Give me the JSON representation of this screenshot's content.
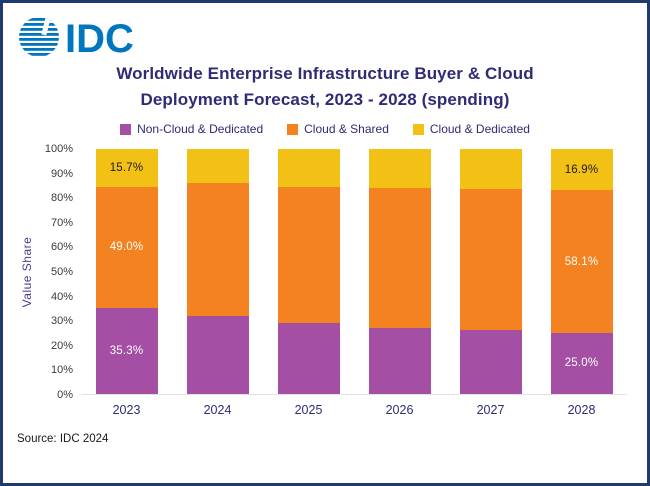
{
  "logo": {
    "text": "IDC",
    "color": "#0076BE"
  },
  "title": {
    "line1": "Worldwide Enterprise Infrastructure Buyer & Cloud",
    "line2": "Deployment Forecast, 2023 - 2028 (spending)"
  },
  "source": "Source: IDC 2024",
  "chart_data": {
    "type": "bar",
    "stacked": true,
    "percent_stacked": true,
    "title": "Worldwide Enterprise Infrastructure Buyer & Cloud Deployment Forecast, 2023 - 2028 (spending)",
    "categories": [
      "2023",
      "2024",
      "2025",
      "2026",
      "2027",
      "2028"
    ],
    "series": [
      {
        "name": "Non-Cloud & Dedicated",
        "color": "#A44FA4",
        "label_color": "#FFFFFF",
        "values": [
          35.3,
          32.0,
          29.0,
          27.0,
          26.0,
          25.0
        ],
        "labels": [
          "35.3%",
          null,
          null,
          null,
          null,
          "25.0%"
        ]
      },
      {
        "name": "Cloud & Shared",
        "color": "#F58220",
        "label_color": "#FFFFFF",
        "values": [
          49.0,
          54.0,
          55.5,
          57.0,
          57.5,
          58.1
        ],
        "labels": [
          "49.0%",
          null,
          null,
          null,
          null,
          "58.1%"
        ]
      },
      {
        "name": "Cloud & Dedicated",
        "color": "#F3C115",
        "label_color": "#1A1A1A",
        "values": [
          15.7,
          14.0,
          15.5,
          16.0,
          16.5,
          16.9
        ],
        "labels": [
          "15.7%",
          null,
          null,
          null,
          null,
          "16.9%"
        ]
      }
    ],
    "xlabel": "",
    "ylabel": "Value Share",
    "ylim": [
      0,
      100
    ],
    "y_ticks": [
      "0%",
      "10%",
      "20%",
      "30%",
      "40%",
      "50%",
      "60%",
      "70%",
      "80%",
      "90%",
      "100%"
    ],
    "grid": false,
    "legend_position": "top"
  }
}
